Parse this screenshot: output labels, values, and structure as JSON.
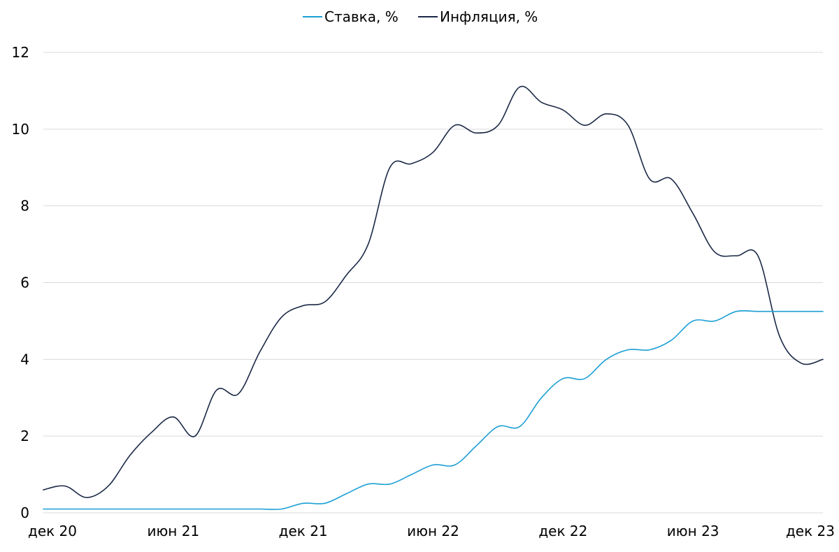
{
  "chart_data": {
    "type": "line",
    "title": "",
    "xlabel": "",
    "ylabel": "",
    "x": [
      "Dec 2020",
      "Jan 2021",
      "Feb 2021",
      "Mar 2021",
      "Apr 2021",
      "May 2021",
      "Jun 2021",
      "Jul 2021",
      "Aug 2021",
      "Sep 2021",
      "Oct 2021",
      "Nov 2021",
      "Dec 2021",
      "Jan 2022",
      "Feb 2022",
      "Mar 2022",
      "Apr 2022",
      "May 2022",
      "Jun 2022",
      "Jul 2022",
      "Aug 2022",
      "Sep 2022",
      "Oct 2022",
      "Nov 2022",
      "Dec 2022",
      "Jan 2023",
      "Feb 2023",
      "Mar 2023",
      "Apr 2023",
      "May 2023",
      "Jun 2023",
      "Jul 2023",
      "Aug 2023",
      "Sep 2023",
      "Oct 2023",
      "Nov 2023",
      "Dec 2023"
    ],
    "x_tick_labels": [
      "дек 20",
      "июн 21",
      "дек 21",
      "июн 22",
      "дек 22",
      "июн 23",
      "дек 23"
    ],
    "y_ticks": [
      0,
      2,
      4,
      6,
      8,
      10,
      12
    ],
    "ylim": [
      0,
      12
    ],
    "grid": "horizontal",
    "legend": "top-center",
    "series": [
      {
        "name": "Ставка, %",
        "color": "#1c9fd4",
        "values": [
          0.1,
          0.1,
          0.1,
          0.1,
          0.1,
          0.1,
          0.1,
          0.1,
          0.1,
          0.1,
          0.1,
          0.1,
          0.25,
          0.25,
          0.5,
          0.75,
          0.75,
          1.0,
          1.25,
          1.25,
          1.75,
          2.25,
          2.25,
          3.0,
          3.5,
          3.5,
          4.0,
          4.25,
          4.25,
          4.5,
          5.0,
          5.0,
          5.25,
          5.25,
          5.25,
          5.25,
          5.25
        ]
      },
      {
        "name": "Инфляция, %",
        "color": "#1b2846",
        "values": [
          0.6,
          0.7,
          0.4,
          0.7,
          1.5,
          2.1,
          2.5,
          2.0,
          3.2,
          3.1,
          4.2,
          5.1,
          5.4,
          5.5,
          6.2,
          7.0,
          9.0,
          9.1,
          9.4,
          10.1,
          9.9,
          10.1,
          11.1,
          10.7,
          10.5,
          10.1,
          10.4,
          10.1,
          8.7,
          8.7,
          7.8,
          6.8,
          6.7,
          6.7,
          4.6,
          3.9,
          4.0
        ]
      }
    ]
  }
}
